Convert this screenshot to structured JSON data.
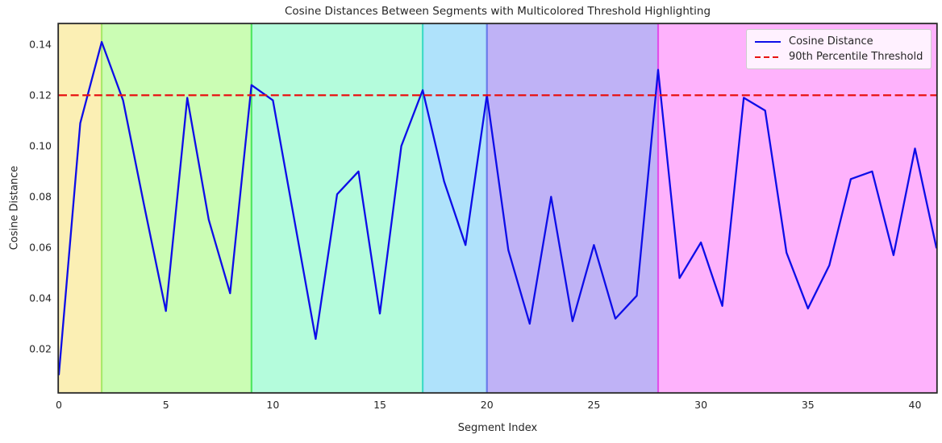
{
  "figure": {
    "title": "Cosine Distances Between Segments with Multicolored Threshold Highlighting",
    "background": "#ffffff",
    "axes_edge_color": "#262626",
    "text_color": "#262626"
  },
  "chart_data": {
    "type": "line",
    "title": "Cosine Distances Between Segments with Multicolored Threshold Highlighting",
    "xlabel": "Segment Index",
    "ylabel": "Cosine Distance",
    "xlim": [
      0,
      41
    ],
    "ylim": [
      0.003,
      0.148
    ],
    "xticks": [
      0,
      5,
      10,
      15,
      20,
      25,
      30,
      35,
      40
    ],
    "yticks": [
      0.02,
      0.04,
      0.06,
      0.08,
      0.1,
      0.12,
      0.14
    ],
    "grid": false,
    "legend_position": "upper right",
    "series": [
      {
        "name": "Cosine Distance",
        "color": "#0d0de8",
        "style": "solid",
        "x": [
          0,
          1,
          2,
          3,
          4,
          5,
          6,
          7,
          8,
          9,
          10,
          11,
          12,
          13,
          14,
          15,
          16,
          17,
          18,
          19,
          20,
          21,
          22,
          23,
          24,
          25,
          26,
          27,
          28,
          29,
          30,
          31,
          32,
          33,
          34,
          35,
          36,
          37,
          38,
          39,
          40,
          41
        ],
        "values": [
          0.01,
          0.109,
          0.141,
          0.118,
          0.076,
          0.035,
          0.119,
          0.071,
          0.042,
          0.124,
          0.118,
          0.071,
          0.024,
          0.081,
          0.09,
          0.034,
          0.1,
          0.122,
          0.086,
          0.061,
          0.12,
          0.059,
          0.03,
          0.08,
          0.031,
          0.061,
          0.032,
          0.041,
          0.13,
          0.048,
          0.062,
          0.037,
          0.119,
          0.114,
          0.058,
          0.036,
          0.053,
          0.087,
          0.09,
          0.057,
          0.099,
          0.06
        ]
      }
    ],
    "threshold": {
      "name": "90th Percentile Threshold",
      "value": 0.12,
      "color": "#e81212",
      "style": "dashed"
    },
    "bands": [
      {
        "from": 0,
        "to": 2,
        "fill": "#fbefb4"
      },
      {
        "from": 2,
        "to": 9,
        "fill": "#cbfdb4"
      },
      {
        "from": 9,
        "to": 17,
        "fill": "#b4fcdc"
      },
      {
        "from": 17,
        "to": 20,
        "fill": "#afe2fb"
      },
      {
        "from": 20,
        "to": 28,
        "fill": "#bfb2f6"
      },
      {
        "from": 28,
        "to": 41,
        "fill": "#feb2fc"
      }
    ],
    "band_edges": [
      {
        "x": 2,
        "color": "#a9e96c"
      },
      {
        "x": 9,
        "color": "#50e662"
      },
      {
        "x": 17,
        "color": "#40dcc6"
      },
      {
        "x": 20,
        "color": "#6a7bea"
      },
      {
        "x": 28,
        "color": "#e14fea"
      }
    ]
  },
  "legend": {
    "items": [
      {
        "label": "Cosine Distance"
      },
      {
        "label": "90th Percentile Threshold"
      }
    ]
  }
}
